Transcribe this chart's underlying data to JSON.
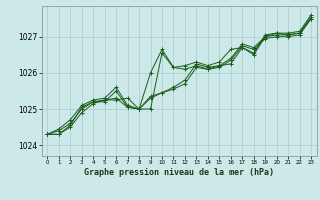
{
  "xlabel": "Graphe pression niveau de la mer (hPa)",
  "background_color": "#cce8e8",
  "line_color": "#1a5c1a",
  "grid_color": "#aacccc",
  "xlim": [
    -0.5,
    23.5
  ],
  "ylim": [
    1023.7,
    1027.85
  ],
  "yticks": [
    1024,
    1025,
    1026,
    1027
  ],
  "xticks": [
    0,
    1,
    2,
    3,
    4,
    5,
    6,
    7,
    8,
    9,
    10,
    11,
    12,
    13,
    14,
    15,
    16,
    17,
    18,
    19,
    20,
    21,
    22,
    23
  ],
  "figsize": [
    3.2,
    2.0
  ],
  "dpi": 100,
  "series": [
    [
      1024.3,
      1024.3,
      1024.55,
      1025.05,
      1025.2,
      1025.25,
      1025.3,
      1025.05,
      1025.0,
      1025.0,
      1026.55,
      1026.15,
      1026.1,
      1026.2,
      1026.1,
      1026.2,
      1026.25,
      1026.7,
      1026.55,
      1027.05,
      1027.1,
      1027.05,
      1027.1,
      1027.5
    ],
    [
      1024.3,
      1024.3,
      1024.5,
      1024.9,
      1025.15,
      1025.25,
      1025.25,
      1025.3,
      1025.0,
      1025.35,
      1025.45,
      1025.6,
      1025.8,
      1026.25,
      1026.15,
      1026.2,
      1026.4,
      1026.8,
      1026.7,
      1027.0,
      1027.05,
      1027.05,
      1027.1,
      1027.55
    ],
    [
      1024.3,
      1024.45,
      1024.7,
      1025.1,
      1025.25,
      1025.3,
      1025.6,
      1025.1,
      1025.0,
      1026.0,
      1026.65,
      1026.15,
      1026.2,
      1026.3,
      1026.2,
      1026.3,
      1026.65,
      1026.7,
      1026.5,
      1027.0,
      1027.1,
      1027.1,
      1027.15,
      1027.6
    ],
    [
      1024.3,
      1024.4,
      1024.6,
      1025.0,
      1025.2,
      1025.2,
      1025.5,
      1025.05,
      1025.0,
      1025.3,
      1025.45,
      1025.55,
      1025.7,
      1026.15,
      1026.1,
      1026.15,
      1026.35,
      1026.75,
      1026.65,
      1026.95,
      1027.0,
      1027.0,
      1027.05,
      1027.5
    ]
  ]
}
